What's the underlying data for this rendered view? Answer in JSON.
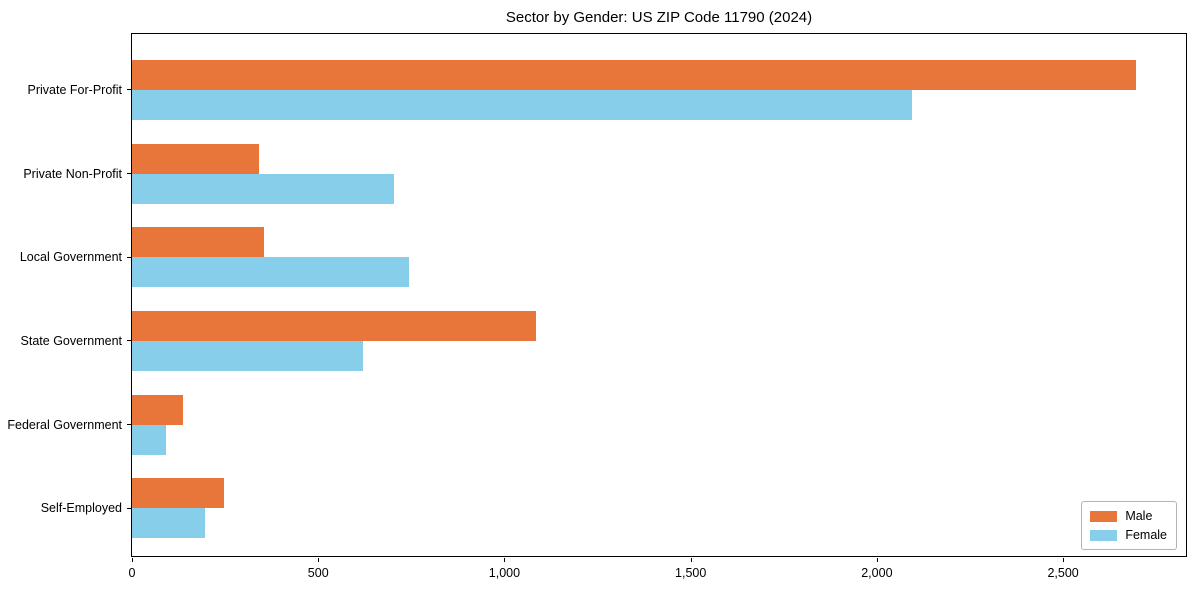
{
  "chart_data": {
    "type": "bar",
    "orientation": "horizontal",
    "title": "Sector by Gender: US ZIP Code 11790 (2024)",
    "categories": [
      "Private For-Profit",
      "Private Non-Profit",
      "Local Government",
      "State Government",
      "Federal Government",
      "Self-Employed"
    ],
    "series": [
      {
        "name": "Male",
        "color": "#e8763a",
        "values": [
          2695,
          342,
          355,
          1085,
          136,
          246
        ]
      },
      {
        "name": "Female",
        "color": "#87ceeb",
        "values": [
          2094,
          704,
          744,
          620,
          90,
          197
        ]
      }
    ],
    "xlabel": "",
    "ylabel": "",
    "xlim": [
      0,
      2830
    ],
    "xticks": [
      {
        "value": 0,
        "label": "0"
      },
      {
        "value": 500,
        "label": "500"
      },
      {
        "value": 1000,
        "label": "1,000"
      },
      {
        "value": 1500,
        "label": "1,500"
      },
      {
        "value": 2000,
        "label": "2,000"
      },
      {
        "value": 2500,
        "label": "2,500"
      }
    ],
    "grid": false,
    "legend_position": "lower right",
    "spine_color": "#000000",
    "legend_border_color": "#b3b3b3"
  }
}
